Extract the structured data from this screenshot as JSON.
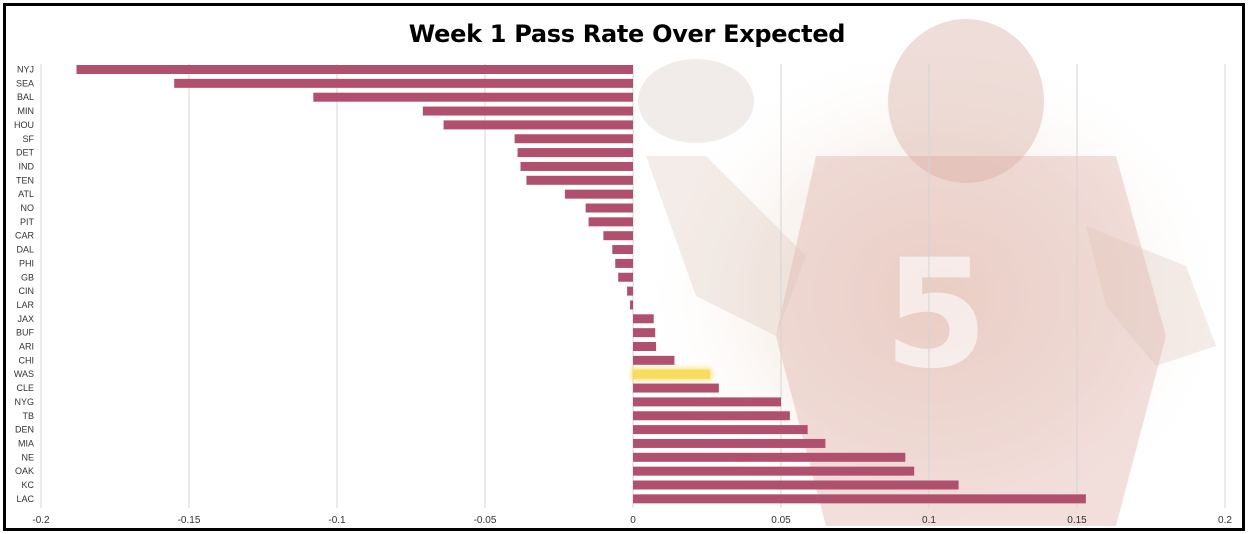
{
  "chart_data": {
    "type": "bar",
    "orientation": "horizontal",
    "title": "Week 1 Pass Rate Over Expected",
    "xlabel": "",
    "ylabel": "",
    "xlim": [
      -0.2,
      0.2
    ],
    "xticks": [
      -0.2,
      -0.15,
      -0.1,
      -0.05,
      0,
      0.05,
      0.1,
      0.15,
      0.2
    ],
    "xtick_labels": [
      "-0.2",
      "-0.15",
      "-0.1",
      "-0.05",
      "0",
      "0.05",
      "0.1",
      "0.15",
      "0.2"
    ],
    "grid": true,
    "categories": [
      "NYJ",
      "SEA",
      "BAL",
      "MIN",
      "HOU",
      "SF",
      "DET",
      "IND",
      "TEN",
      "ATL",
      "NO",
      "PIT",
      "CAR",
      "DAL",
      "PHI",
      "GB",
      "CIN",
      "LAR",
      "JAX",
      "BUF",
      "ARI",
      "CHI",
      "WAS",
      "CLE",
      "NYG",
      "TB",
      "DEN",
      "MIA",
      "NE",
      "OAK",
      "KC",
      "LAC"
    ],
    "values": [
      -0.188,
      -0.155,
      -0.108,
      -0.071,
      -0.064,
      -0.04,
      -0.039,
      -0.038,
      -0.036,
      -0.023,
      -0.016,
      -0.015,
      -0.01,
      -0.007,
      -0.006,
      -0.005,
      -0.002,
      -0.001,
      0.007,
      0.0075,
      0.0078,
      0.014,
      0.026,
      0.029,
      0.05,
      0.053,
      0.059,
      0.065,
      0.092,
      0.095,
      0.11,
      0.153
    ],
    "highlight": "WAS",
    "bar_color": "#b0506e",
    "highlight_color": "#f8dd5c"
  }
}
